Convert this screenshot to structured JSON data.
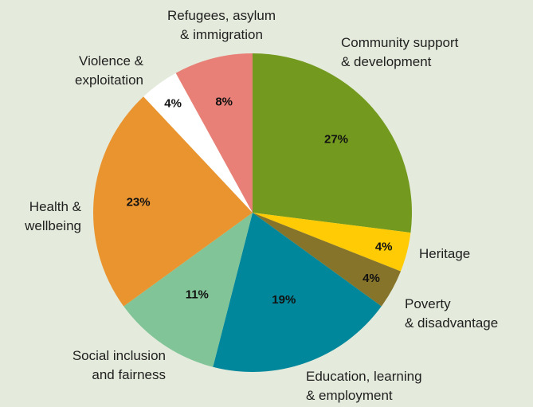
{
  "chart_data": {
    "type": "pie",
    "start_angle_deg": 0,
    "direction": "clockwise",
    "slices": [
      {
        "label_lines": [
          "Community support",
          "& development"
        ],
        "value": 27,
        "value_label": "27%",
        "color": "#739A1E"
      },
      {
        "label_lines": [
          "Heritage"
        ],
        "value": 4,
        "value_label": "4%",
        "color": "#FFCB05"
      },
      {
        "label_lines": [
          "Poverty",
          "& disadvantage"
        ],
        "value": 4,
        "value_label": "4%",
        "color": "#85742A"
      },
      {
        "label_lines": [
          "Education, learning",
          "& employment"
        ],
        "value": 19,
        "value_label": "19%",
        "color": "#00879B"
      },
      {
        "label_lines": [
          "Social inclusion",
          "and fairness"
        ],
        "value": 11,
        "value_label": "11%",
        "color": "#80C497"
      },
      {
        "label_lines": [
          "Health &",
          "wellbeing"
        ],
        "value": 23,
        "value_label": "23%",
        "color": "#EA9430"
      },
      {
        "label_lines": [
          "Violence &",
          "exploitation"
        ],
        "value": 4,
        "value_label": "4%",
        "color": "#FFFFFF"
      },
      {
        "label_lines": [
          "Refugees, asylum",
          "& immigration"
        ],
        "value": 8,
        "value_label": "8%",
        "color": "#E88077"
      }
    ]
  }
}
